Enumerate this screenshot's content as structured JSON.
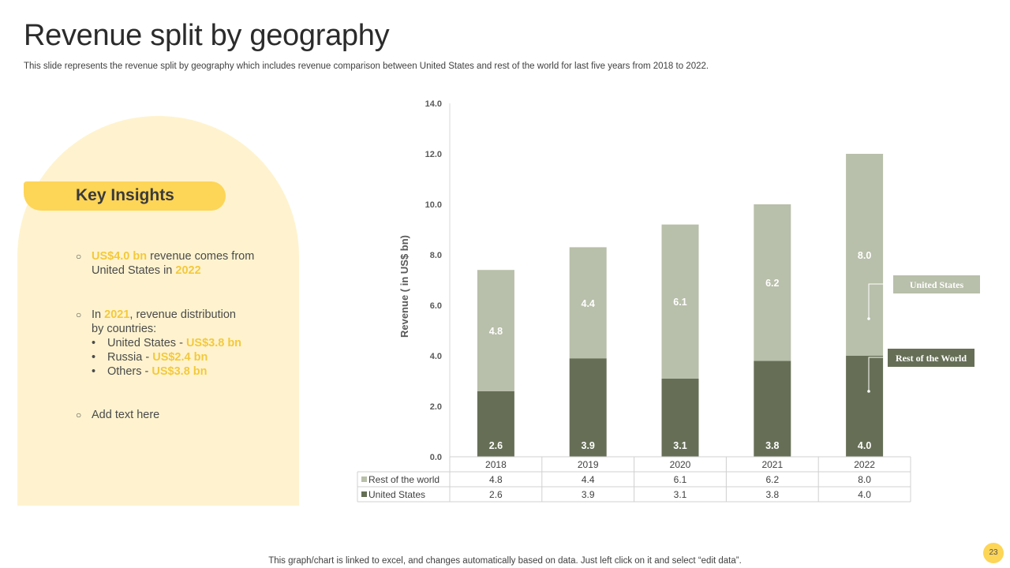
{
  "slide": {
    "title": "Revenue split by geography",
    "subtitle": "This slide represents the revenue split by geography which includes revenue comparison between United States and rest of the world for last five years from 2018 to 2022.",
    "footnote": "This graph/chart is linked to excel,  and changes automatically based on data. Just left click on it and select “edit data”.",
    "page_number": "23"
  },
  "insights": {
    "heading": "Key Insights",
    "item1": {
      "hl1": "US$4.0 bn",
      "t1": " revenue comes from",
      "t2": "United States in ",
      "hl2": "2022"
    },
    "item2": {
      "t1": "In ",
      "hl1": "2021",
      "t2": ", revenue distribution",
      "t3": "by countries:",
      "sub": [
        {
          "label": "United States - ",
          "value": "US$3.8 bn"
        },
        {
          "label": "Russia - ",
          "value": "US$2.4 bn"
        },
        {
          "label": "Others - ",
          "value": "US$3.8 bn"
        }
      ]
    },
    "item3": {
      "t1": "Add text here"
    }
  },
  "colors": {
    "accent": "#fdd557",
    "rest": "#b8bfaa",
    "us": "#666f56",
    "callout_rest_bg": "#b8bfaa",
    "callout_us_bg": "#666f56"
  },
  "chart_data": {
    "type": "bar",
    "stacked": true,
    "categories": [
      "2018",
      "2019",
      "2020",
      "2021",
      "2022"
    ],
    "series": [
      {
        "name": "United States",
        "values": [
          2.6,
          3.9,
          3.1,
          3.8,
          4.0
        ]
      },
      {
        "name": "Rest of the world",
        "values": [
          4.8,
          4.4,
          6.1,
          6.2,
          8.0
        ]
      }
    ],
    "ylabel": "Revenue ( in US$ bn)",
    "ylim": [
      0,
      14
    ],
    "yticks": [
      "0.0",
      "2.0",
      "4.0",
      "6.0",
      "8.0",
      "10.0",
      "12.0",
      "14.0"
    ],
    "table_rows": [
      {
        "label": "Rest of the world",
        "values": [
          "4.8",
          "4.4",
          "6.1",
          "6.2",
          "8.0"
        ]
      },
      {
        "label": "United States",
        "values": [
          "2.6",
          "3.9",
          "3.1",
          "3.8",
          "4.0"
        ]
      }
    ],
    "callouts": [
      {
        "text": "United States"
      },
      {
        "text": "Rest of the World"
      }
    ]
  }
}
